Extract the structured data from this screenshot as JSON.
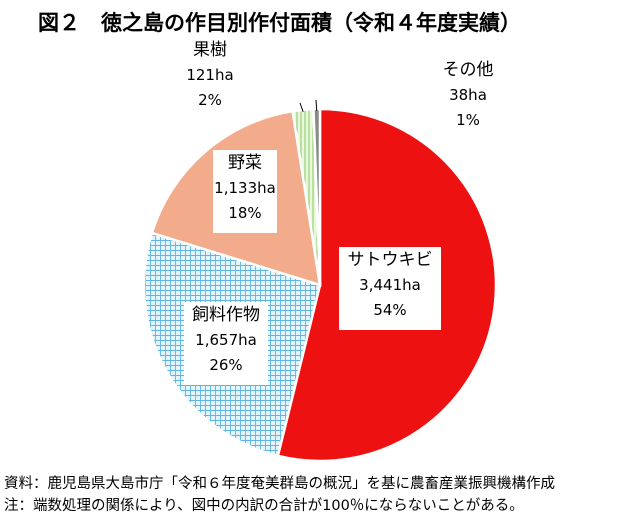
{
  "chart_data": {
    "type": "pie",
    "title": "図２　徳之島の作目別作付面積（令和４年度実績）",
    "unit": "ha",
    "slices": [
      {
        "name": "サトウキビ",
        "area": "3,441ha",
        "value": 3441,
        "percent": "54%",
        "color": "#ee1111"
      },
      {
        "name": "飼料作物",
        "area": "1,657ha",
        "value": 1657,
        "percent": "26%",
        "color": "#d8eefa",
        "pattern": "grid"
      },
      {
        "name": "野菜",
        "area": "1,133ha",
        "value": 1133,
        "percent": "18%",
        "color": "#f2ab8b"
      },
      {
        "name": "果樹",
        "area": "121ha",
        "value": 121,
        "percent": "2%",
        "color": "#d9f5c8",
        "pattern": "stripes"
      },
      {
        "name": "その他",
        "area": "38ha",
        "value": 38,
        "percent": "1%",
        "color": "#8a8a8a"
      }
    ]
  },
  "notes": {
    "source": "資料：鹿児島県大島市庁「令和６年度奄美群島の概況」を基に農畜産業振興機構作成",
    "caveat": "注：端数処理の関係により、図中の内訳の合計が100％にならないことがある。"
  }
}
